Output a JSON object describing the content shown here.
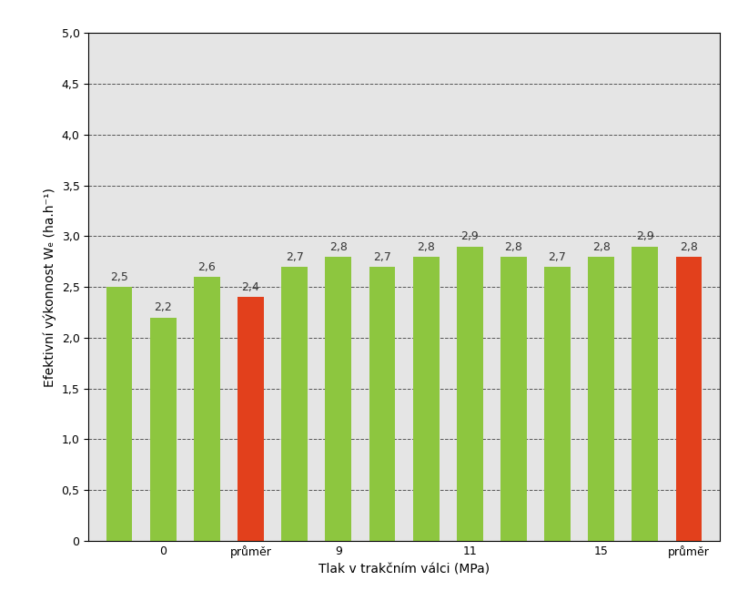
{
  "chart_data": {
    "type": "bar",
    "x_label": "Tlak v trakčním válci (MPa)",
    "y_label": "Efektivní výkonnost Wₑ (ha.h⁻¹)",
    "categories": [
      null,
      "0",
      null,
      "průměr",
      null,
      "9",
      null,
      null,
      "11",
      null,
      null,
      "15",
      null,
      "průměr"
    ],
    "values": [
      2.5,
      2.2,
      2.6,
      2.4,
      2.7,
      2.8,
      2.7,
      2.8,
      2.9,
      2.8,
      2.7,
      2.8,
      2.9,
      2.8
    ],
    "value_labels": [
      "2,5",
      "2,2",
      "2,6",
      "2,4",
      "2,7",
      "2,8",
      "2,7",
      "2,8",
      "2,9",
      "2,8",
      "2,7",
      "2,8",
      "2,9",
      "2,8"
    ],
    "colors": [
      "#8dc63f",
      "#8dc63f",
      "#8dc63f",
      "#e2401c",
      "#8dc63f",
      "#8dc63f",
      "#8dc63f",
      "#8dc63f",
      "#8dc63f",
      "#8dc63f",
      "#8dc63f",
      "#8dc63f",
      "#8dc63f",
      "#e2401c"
    ],
    "ylim": [
      0,
      5
    ],
    "yticks": [
      0,
      {
        "value": 0.5,
        "label": "0,5"
      },
      {
        "value": 1,
        "label": "1,0"
      },
      {
        "value": 1.5,
        "label": "1,5"
      },
      {
        "value": 2,
        "label": "2,0"
      },
      {
        "value": 2.5,
        "label": "2,5"
      },
      {
        "value": 3,
        "label": "3,0"
      },
      {
        "value": 3.5,
        "label": "3,5"
      },
      {
        "value": 4,
        "label": "4,0"
      },
      {
        "value": 4.5,
        "label": "4,5"
      },
      {
        "value": 5,
        "label": "5,0"
      }
    ],
    "grid": true,
    "data_labels": true
  }
}
